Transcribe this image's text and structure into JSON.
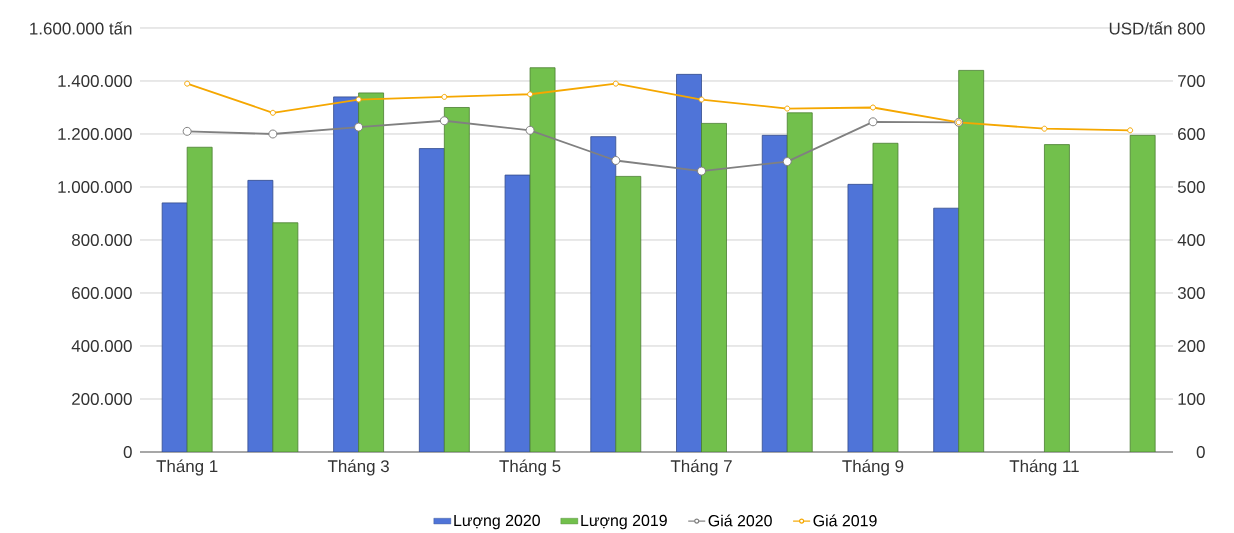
{
  "chart_data": {
    "type": "bar",
    "categories": [
      "Tháng 1",
      null,
      "Tháng 3",
      null,
      "Tháng 5",
      null,
      "Tháng 7",
      null,
      "Tháng 9",
      null,
      "Tháng 11",
      null
    ],
    "series": [
      {
        "name": "Lượng 2020",
        "color": "#4f74d8",
        "values": [
          940000,
          1025000,
          1340000,
          1145000,
          1045000,
          1190000,
          1425000,
          1195000,
          1010000,
          920000,
          null,
          null
        ]
      },
      {
        "name": "Lượng 2019",
        "color": "#72c04c",
        "values": [
          1150000,
          865000,
          1355000,
          1300000,
          1450000,
          1040000,
          1240000,
          1280000,
          1165000,
          1440000,
          1160000,
          1195000
        ]
      },
      {
        "name": "Giá 2020",
        "type": "line",
        "axis": "y2",
        "color": "#808080",
        "values": [
          605,
          600,
          613,
          625,
          607,
          550,
          530,
          548,
          623,
          622,
          null,
          null
        ]
      },
      {
        "name": "Giá 2019",
        "type": "line",
        "axis": "y2",
        "color": "#f5a700",
        "values": [
          695,
          640,
          665,
          670,
          675,
          695,
          665,
          648,
          650,
          622,
          610,
          607
        ]
      }
    ],
    "ylim": [
      0,
      1600000
    ],
    "yticks": [
      0,
      {
        "value": 200000,
        "label": "200.000"
      },
      {
        "value": 400000,
        "label": "400.000"
      },
      {
        "value": 600000,
        "label": "600.000"
      },
      {
        "value": 800000,
        "label": "800.000"
      },
      {
        "value": 1000000,
        "label": "1.000.000"
      },
      {
        "value": 1200000,
        "label": "1.200.000"
      },
      {
        "value": 1400000,
        "label": "1.400.000"
      },
      {
        "value": 1600000,
        "label": "1.600.000 tấn"
      }
    ],
    "y2lim": [
      0,
      800
    ],
    "y2ticks": [
      0,
      100,
      200,
      300,
      400,
      500,
      600,
      700,
      {
        "value": 800,
        "label": "USD/tấn 800"
      }
    ],
    "grid": "y",
    "legend": "bottom",
    "marker": "circle"
  }
}
